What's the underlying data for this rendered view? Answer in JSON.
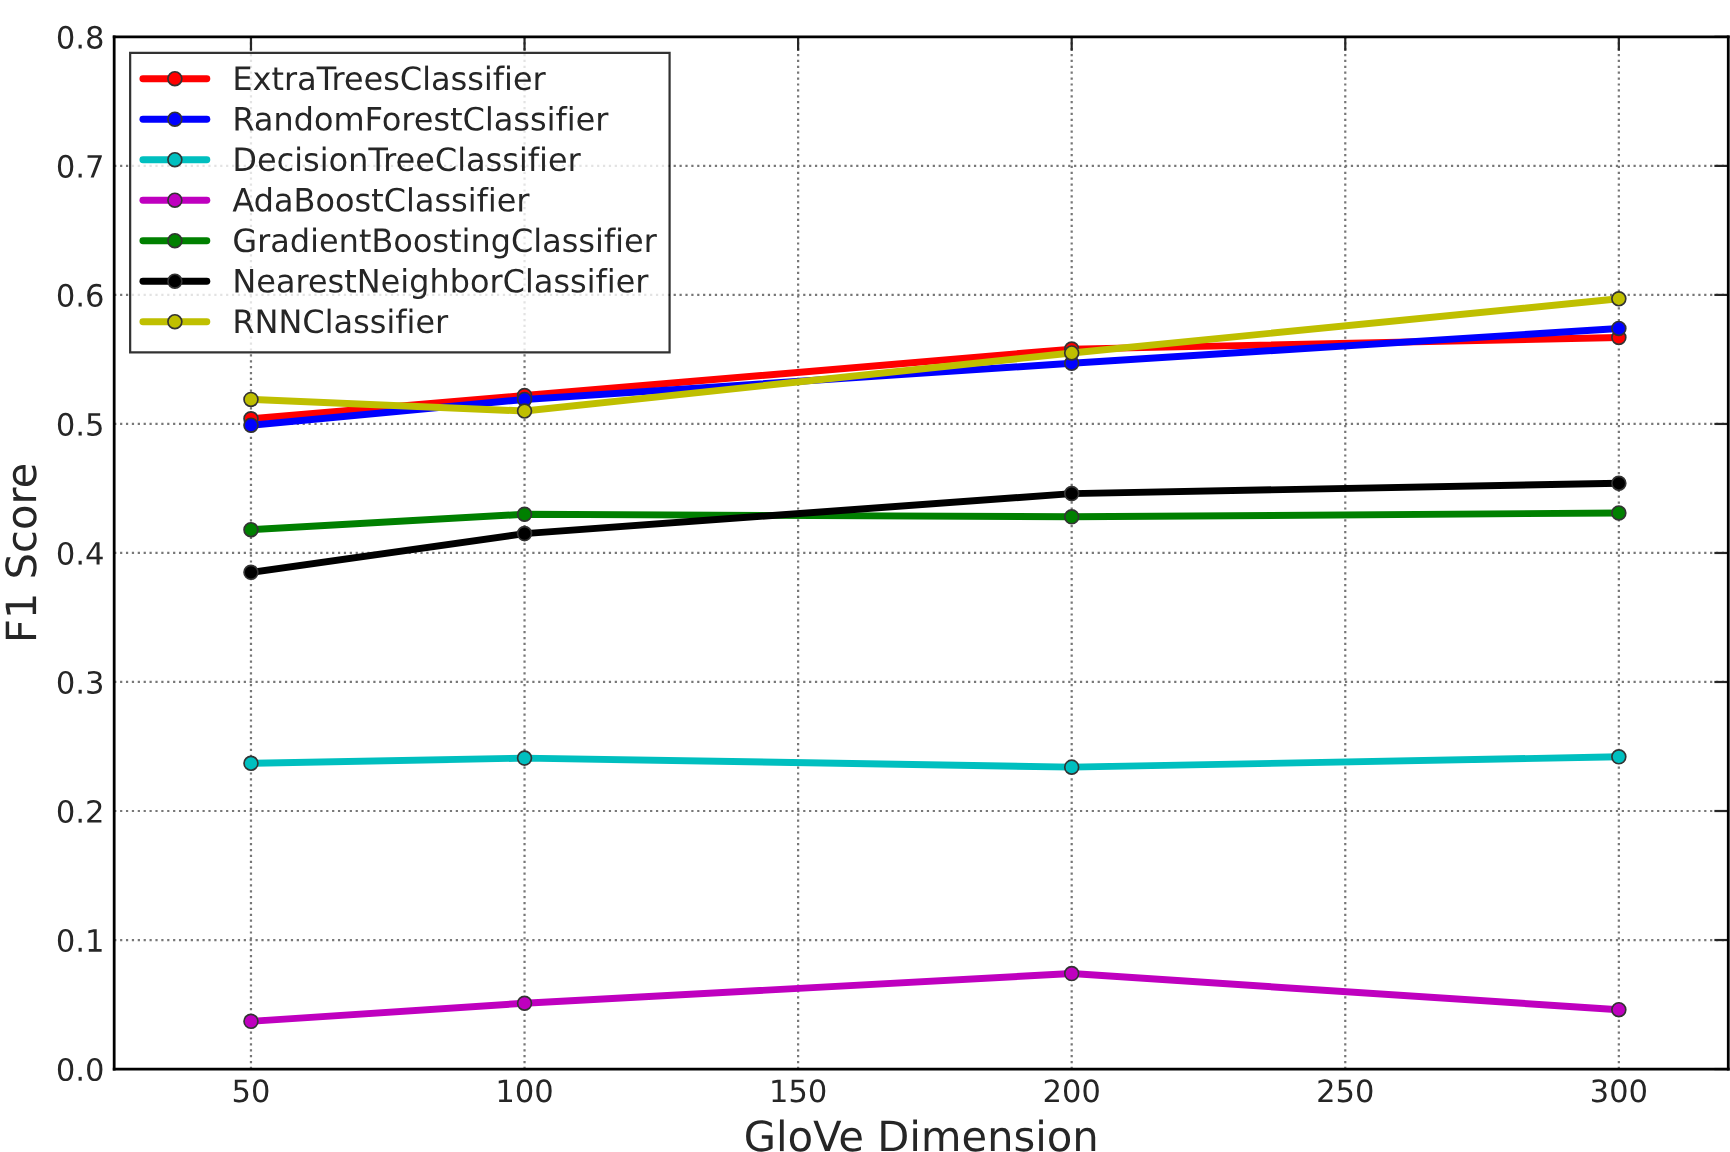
{
  "chart_data": {
    "type": "line",
    "xlabel": "GloVe Dimension",
    "ylabel": "F1 Score",
    "x": [
      50,
      100,
      200,
      300
    ],
    "xlim": [
      25,
      320
    ],
    "xticks": [
      50,
      100,
      150,
      200,
      250,
      300
    ],
    "ylim": [
      0,
      0.8
    ],
    "yticks": [
      {
        "value": 0,
        "label": "0.0"
      },
      0.1,
      0.2,
      0.3,
      0.4,
      0.5,
      0.6,
      0.7,
      0.8
    ],
    "grid": true,
    "legend": "top left",
    "marker": "circle",
    "line_style": "solid",
    "series": [
      {
        "name": "ExtraTreesClassifier",
        "color": "#ff0000",
        "values": [
          0.504,
          0.522,
          0.558,
          0.567
        ]
      },
      {
        "name": "RandomForestClassifier",
        "color": "#0000ff",
        "values": [
          0.499,
          0.519,
          0.547,
          0.574
        ]
      },
      {
        "name": "DecisionTreeClassifier",
        "color": "#00bfbf",
        "values": [
          0.237,
          0.241,
          0.234,
          0.242
        ]
      },
      {
        "name": "AdaBoostClassifier",
        "color": "#bf00bf",
        "values": [
          0.037,
          0.051,
          0.074,
          0.046
        ]
      },
      {
        "name": "GradientBoostingClassifier",
        "color": "#008000",
        "values": [
          0.418,
          0.43,
          0.428,
          0.431
        ]
      },
      {
        "name": "NearestNeighborClassifier",
        "color": "#000000",
        "values": [
          0.385,
          0.415,
          0.446,
          0.454
        ]
      },
      {
        "name": "RNNClassifier",
        "color": "#bfbf00",
        "values": [
          0.519,
          0.51,
          0.555,
          0.597
        ]
      }
    ]
  }
}
